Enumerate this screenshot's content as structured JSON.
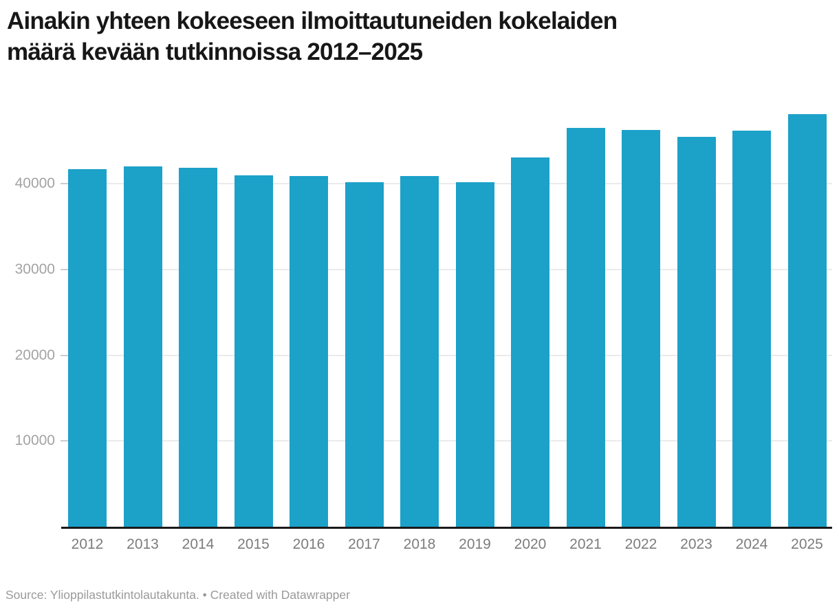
{
  "header": {
    "title_line1": "Ainakin yhteen kokeeseen ilmoittautuneiden kokelaiden",
    "title_line2": "määrä kevään tutkinnoissa 2012–2025"
  },
  "chart_data": {
    "type": "bar",
    "title": "Ainakin yhteen kokeeseen ilmoittautuneiden kokelaiden määrä kevään tutkinnoissa 2012–2025",
    "categories": [
      "2012",
      "2013",
      "2014",
      "2015",
      "2016",
      "2017",
      "2018",
      "2019",
      "2020",
      "2021",
      "2022",
      "2023",
      "2024",
      "2025"
    ],
    "values": [
      41700,
      42000,
      41900,
      41000,
      40900,
      40200,
      40900,
      40200,
      43100,
      46500,
      46300,
      45500,
      46200,
      48100
    ],
    "xlabel": "",
    "ylabel": "",
    "ylim": [
      0,
      48500
    ],
    "yticks": [
      10000,
      20000,
      30000,
      40000
    ],
    "ytick_labels": [
      "10000",
      "20000",
      "30000",
      "40000"
    ],
    "grid": true,
    "legend_position": "none",
    "bar_color": "#1CA1C9",
    "axis_line_color": "#1a1a1a",
    "gridline_color": "#ebebeb",
    "tick_label_color": "#9e9e9e"
  },
  "footer": {
    "source_text": "Source: Ylioppilastutkintolautakunta. • Created with Datawrapper"
  }
}
